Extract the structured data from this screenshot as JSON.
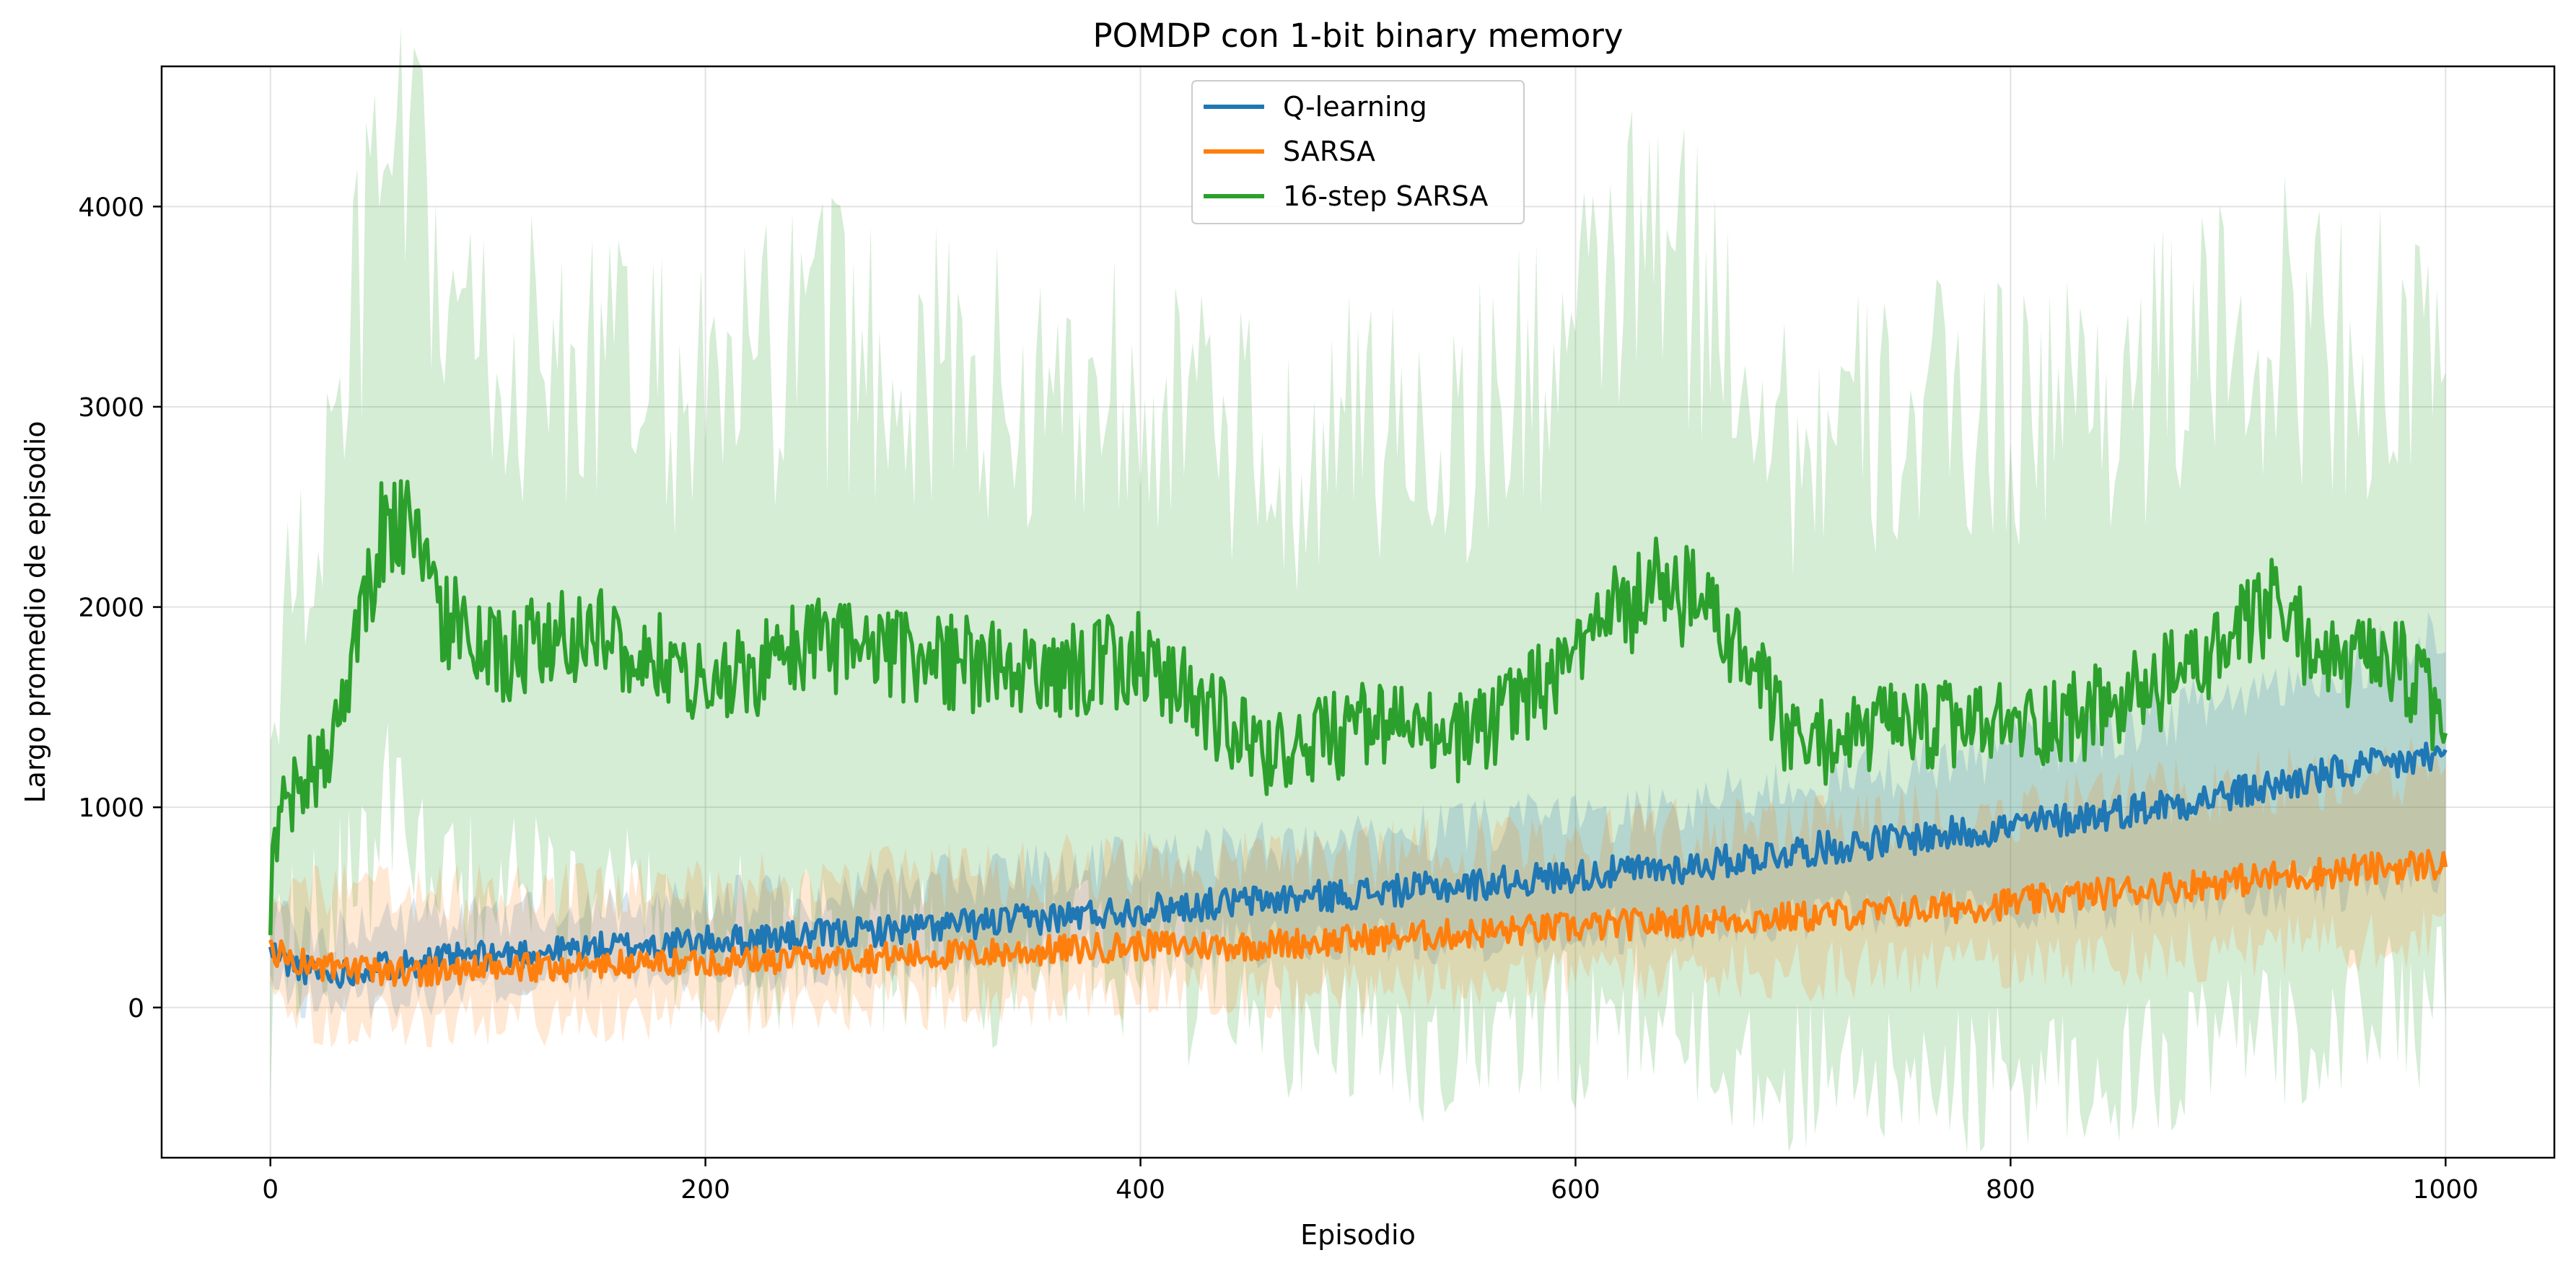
{
  "chart_data": {
    "type": "line",
    "title": "POMDP con 1-bit binary memory",
    "xlabel": "Episodio",
    "ylabel": "Largo promedio de episodio",
    "xlim": [
      -50,
      1050
    ],
    "ylim": [
      -750,
      4700
    ],
    "xticks": [
      0,
      200,
      400,
      600,
      800,
      1000
    ],
    "yticks": [
      0,
      1000,
      2000,
      3000,
      4000
    ],
    "grid": true,
    "legend_position": "top-center",
    "series": [
      {
        "name": "Q-learning",
        "color": "#1f77b4",
        "x": [
          0,
          10,
          20,
          30,
          40,
          50,
          100,
          150,
          200,
          250,
          300,
          350,
          400,
          450,
          500,
          550,
          600,
          650,
          700,
          750,
          800,
          850,
          900,
          950,
          1000
        ],
        "mean": [
          280,
          210,
          180,
          170,
          190,
          210,
          260,
          300,
          330,
          360,
          400,
          440,
          490,
          530,
          570,
          610,
          660,
          700,
          780,
          840,
          900,
          980,
          1060,
          1170,
          1260
        ],
        "lower": [
          120,
          60,
          30,
          30,
          40,
          60,
          100,
          150,
          170,
          190,
          220,
          250,
          280,
          300,
          330,
          350,
          380,
          400,
          440,
          470,
          500,
          520,
          550,
          600,
          640
        ],
        "upper": [
          450,
          400,
          380,
          370,
          390,
          420,
          460,
          480,
          520,
          560,
          620,
          680,
          730,
          790,
          840,
          890,
          950,
          1010,
          1110,
          1190,
          1290,
          1400,
          1540,
          1720,
          1880
        ]
      },
      {
        "name": "SARSA",
        "color": "#ff7f0e",
        "x": [
          0,
          10,
          20,
          30,
          40,
          50,
          100,
          150,
          200,
          250,
          300,
          350,
          400,
          450,
          500,
          550,
          600,
          650,
          700,
          750,
          800,
          850,
          900,
          950,
          1000
        ],
        "mean": [
          290,
          240,
          210,
          190,
          180,
          180,
          190,
          210,
          230,
          240,
          260,
          280,
          310,
          310,
          340,
          370,
          400,
          430,
          450,
          480,
          520,
          580,
          630,
          680,
          720
        ],
        "lower": [
          20,
          -40,
          -60,
          -70,
          -80,
          -80,
          -60,
          -40,
          -20,
          0,
          20,
          40,
          70,
          80,
          100,
          120,
          140,
          160,
          180,
          200,
          230,
          260,
          290,
          320,
          350
        ],
        "upper": [
          650,
          620,
          600,
          580,
          560,
          560,
          560,
          580,
          600,
          620,
          650,
          680,
          720,
          720,
          750,
          790,
          830,
          870,
          900,
          940,
          990,
          1050,
          1110,
          1160,
          1200
        ]
      },
      {
        "name": "16-step SARSA",
        "color": "#2ca02c",
        "x": [
          0,
          5,
          10,
          20,
          30,
          40,
          50,
          60,
          70,
          80,
          100,
          150,
          200,
          250,
          300,
          350,
          400,
          420,
          440,
          460,
          500,
          550,
          600,
          620,
          640,
          660,
          680,
          700,
          750,
          800,
          850,
          900,
          920,
          950,
          980,
          1000
        ],
        "mean": [
          550,
          1000,
          1100,
          1150,
          1400,
          1800,
          2350,
          2450,
          2200,
          1950,
          1750,
          1900,
          1600,
          1800,
          1750,
          1650,
          1750,
          1600,
          1400,
          1250,
          1400,
          1350,
          1700,
          2000,
          2100,
          2000,
          1700,
          1300,
          1400,
          1400,
          1500,
          1800,
          2000,
          1700,
          1700,
          1400
        ],
        "lower": [
          -100,
          200,
          300,
          350,
          500,
          650,
          900,
          950,
          800,
          650,
          550,
          500,
          300,
          350,
          250,
          200,
          200,
          100,
          50,
          -50,
          -150,
          -200,
          -100,
          -50,
          0,
          -150,
          -300,
          -350,
          -400,
          -350,
          -300,
          -200,
          -150,
          -50,
          0,
          0
        ],
        "upper": [
          1300,
          1800,
          2000,
          2300,
          2800,
          3500,
          4100,
          4150,
          3900,
          3500,
          3200,
          3200,
          3000,
          3300,
          3200,
          3000,
          3200,
          3000,
          2800,
          2700,
          2900,
          2900,
          3300,
          3700,
          3800,
          3500,
          3300,
          2800,
          2900,
          3000,
          3100,
          3300,
          3400,
          3300,
          3200,
          3000
        ]
      }
    ]
  }
}
